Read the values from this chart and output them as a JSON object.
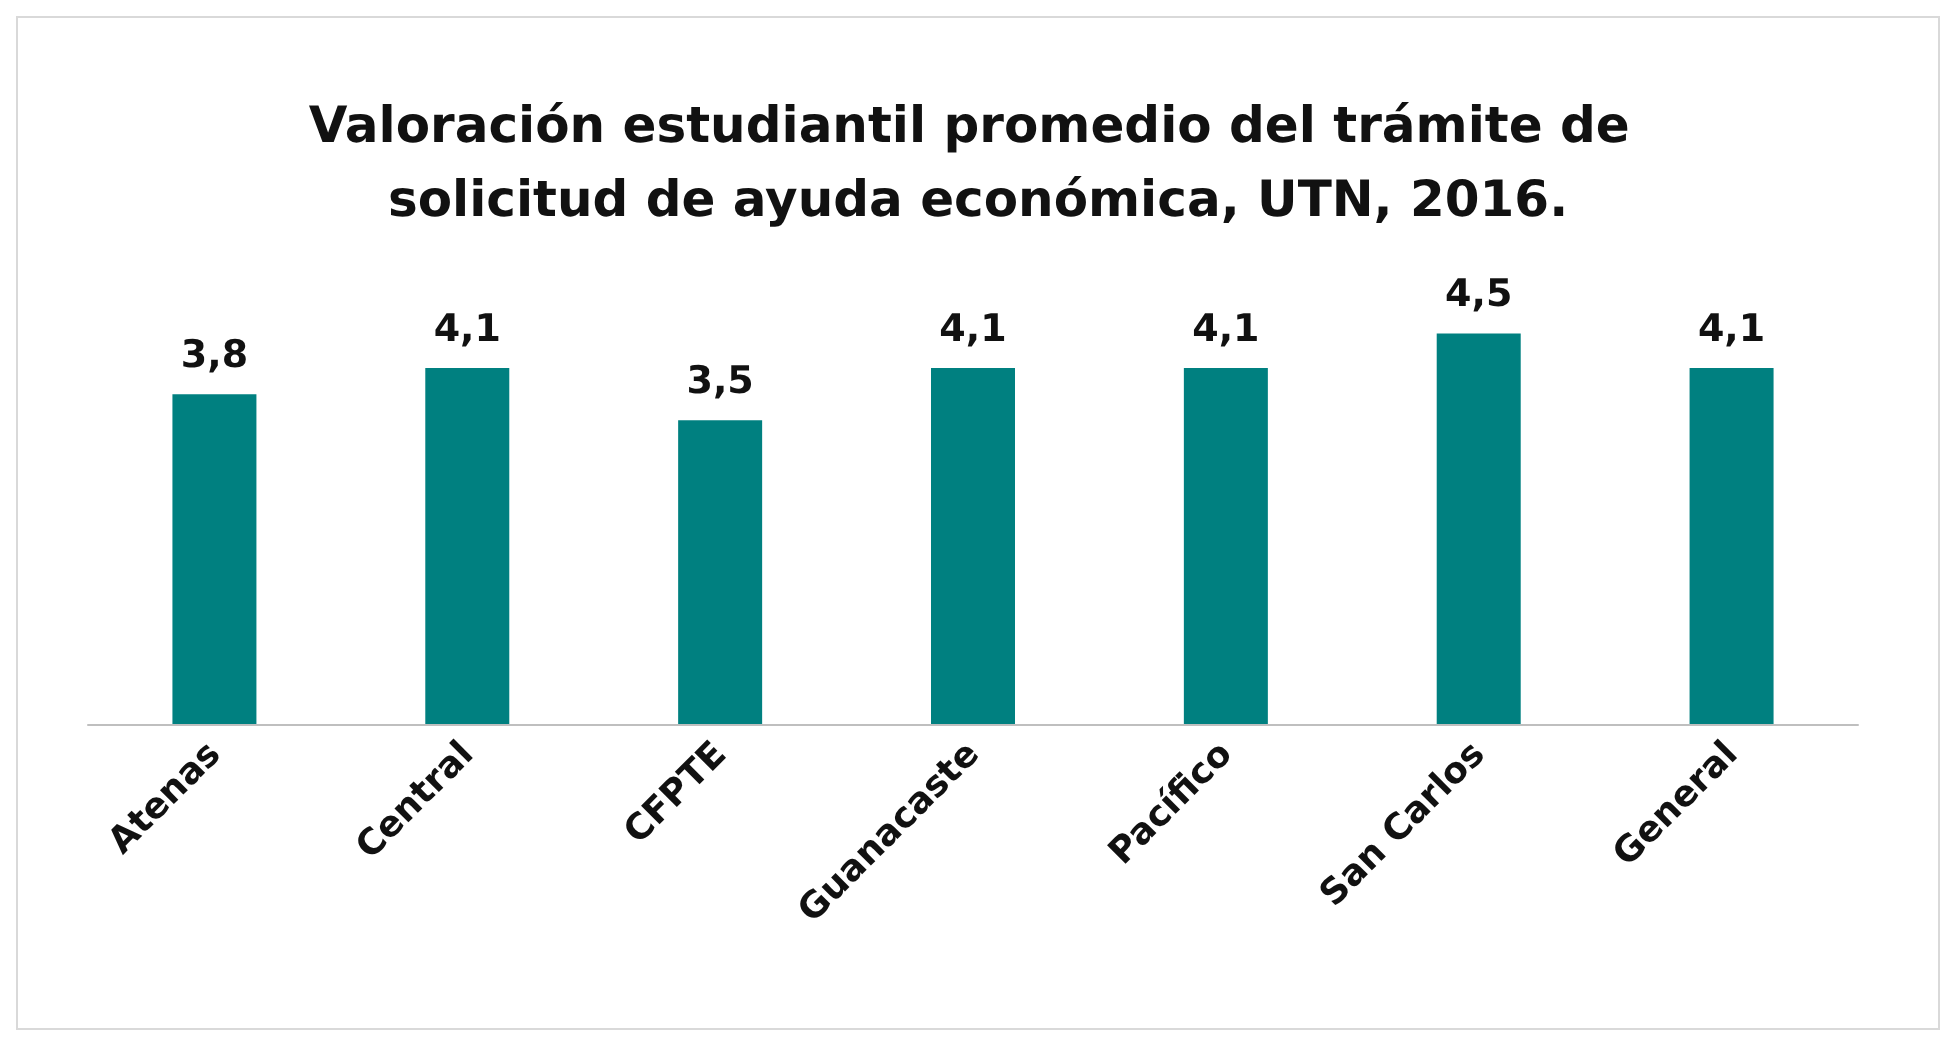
{
  "chart_data": {
    "type": "bar",
    "title": "Valoración estudiantil promedio del trámite de solicitud de ayuda económica, UTN, 2016.",
    "categories": [
      "Atenas",
      "Central",
      "CFPTE",
      "Guanacaste",
      "Pacífico",
      "San Carlos",
      "General"
    ],
    "values": [
      3.8,
      4.1,
      3.5,
      4.1,
      4.1,
      4.5,
      4.1
    ],
    "value_labels": [
      "3,8",
      "4,1",
      "3,5",
      "4,1",
      "4,1",
      "4,5",
      "4,1"
    ],
    "color": "#008080"
  }
}
